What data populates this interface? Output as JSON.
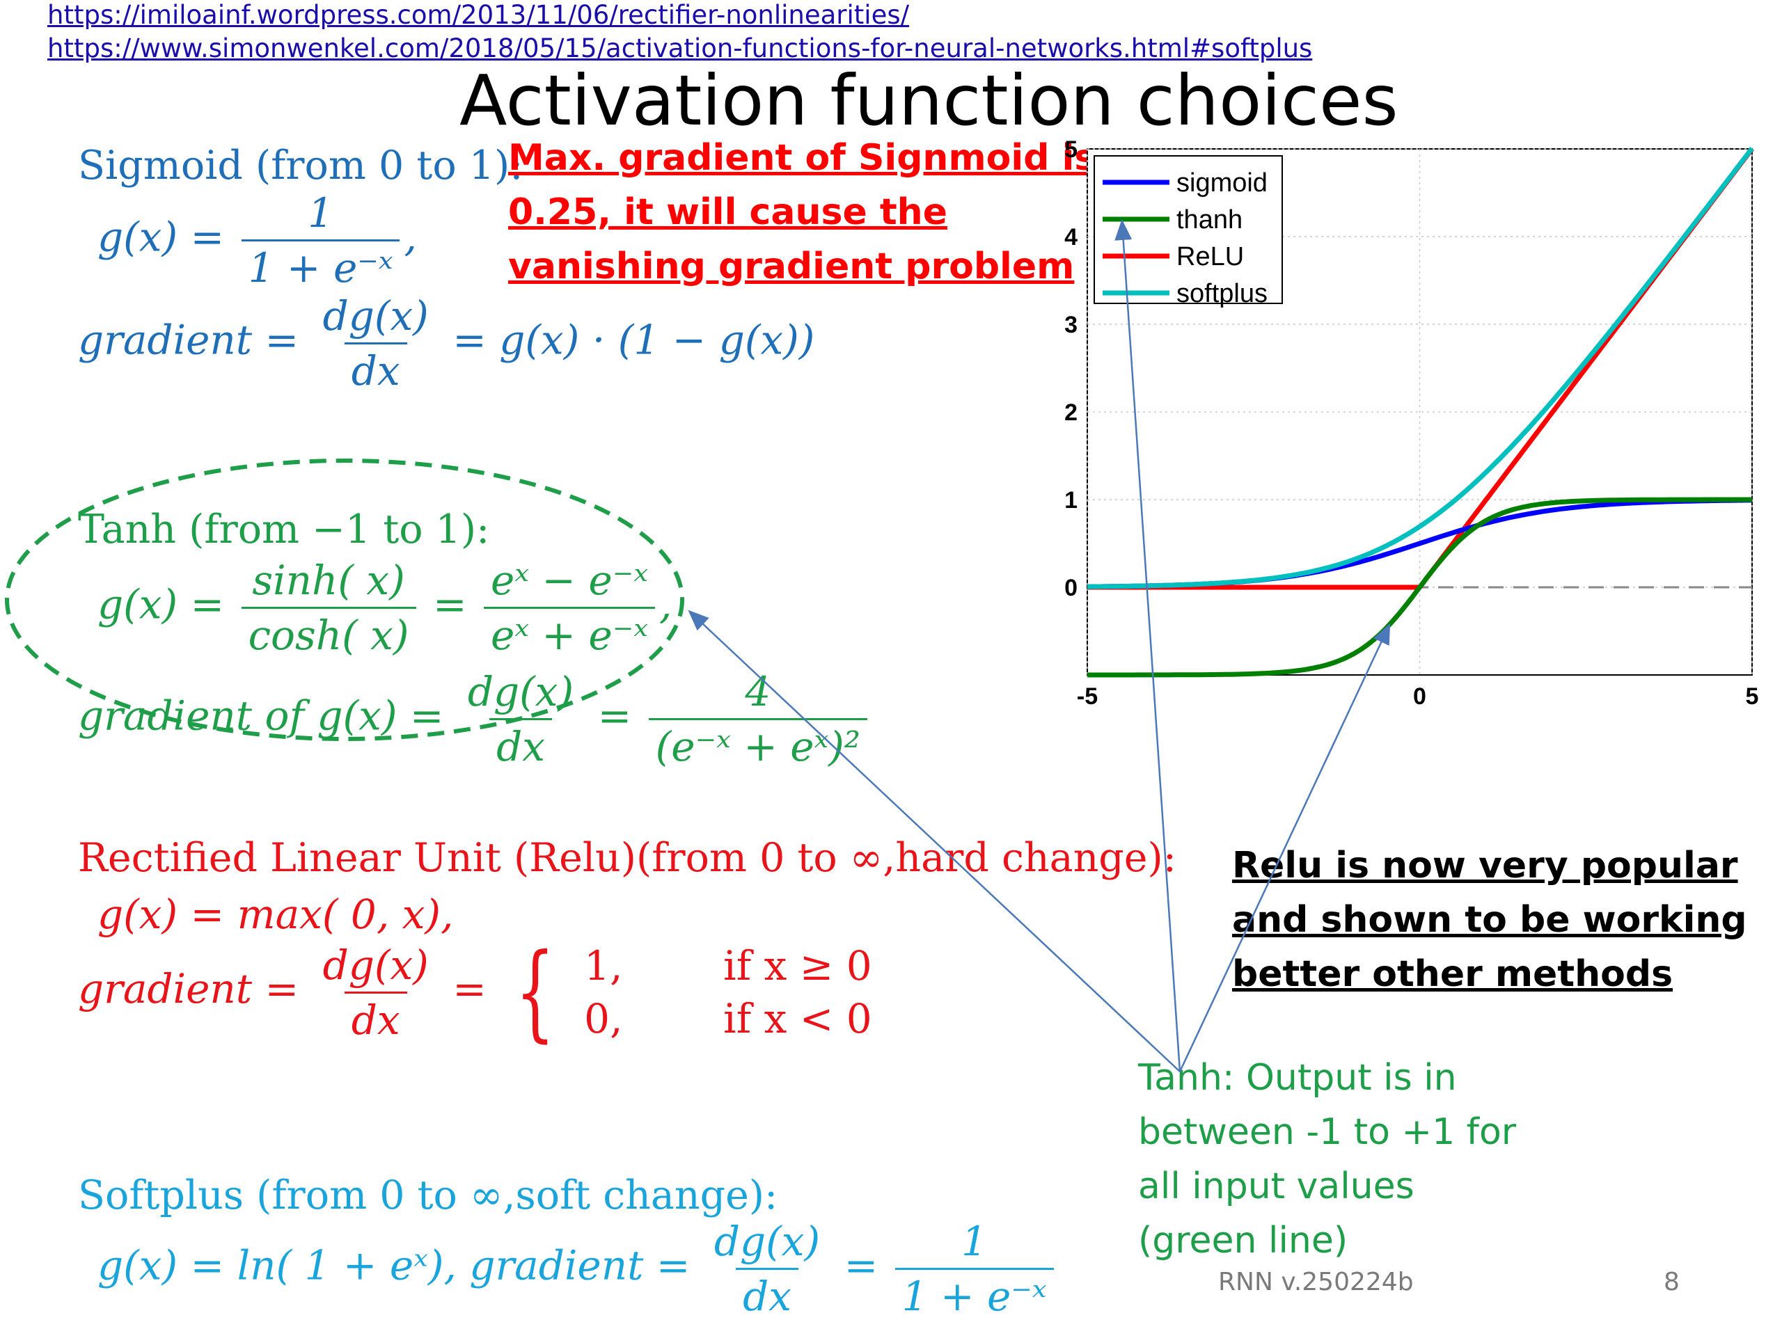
{
  "links": [
    "https://imiloainf.wordpress.com/2013/11/06/rectifier-nonlinearities/",
    "https://www.simonwenkel.com/2018/05/15/activation-functions-for-neural-networks.html#softplus"
  ],
  "title": "Activation function choices",
  "sigmoid": {
    "heading": "Sigmoid (from 0 to 1):",
    "g_lhs": "g(x) =",
    "g_num": "1",
    "g_den": "1 + e⁻ˣ",
    "g_tail": ",",
    "grad_lhs": "gradient =",
    "grad_num": "dg(x)",
    "grad_den": "dx",
    "grad_rhs": "= g(x) · (1 − g(x))"
  },
  "sigmoid_warning": [
    "Max. gradient of Signmoid is",
    "0.25, it will cause the",
    "vanishing gradient  problem"
  ],
  "tanh": {
    "heading": "Tanh (from −1 to 1):",
    "g_lhs": "g(x) =",
    "f1_num": "sinh( x)",
    "f1_den": "cosh( x)",
    "eq": "=",
    "f2_num": "eˣ − e⁻ˣ",
    "f2_den": "eˣ + e⁻ˣ",
    "tail": ",",
    "grad_lhs": "gradient of g(x) =",
    "grad_num": "dg(x)",
    "grad_den": "dx",
    "grad_eq": "=",
    "grad_num2": "4",
    "grad_den2": "(e⁻ˣ + eˣ)²"
  },
  "relu": {
    "heading": "Rectified Linear Unit (Relu)(from 0 to ∞,hard change):",
    "g": "g(x) = max( 0, x),",
    "grad_lhs": "gradient =",
    "grad_num": "dg(x)",
    "grad_den": "dx",
    "grad_eq": "=",
    "brace": "{",
    "case1_val": "1,",
    "case1_cond": "if x ≥ 0",
    "case2_val": "0,",
    "case2_cond": "if x < 0"
  },
  "softplus": {
    "heading": "Softplus (from 0 to ∞,soft change):",
    "g": "g(x) = ln( 1 + eˣ), gradient =",
    "grad_num": "dg(x)",
    "grad_den": "dx",
    "eq": "=",
    "grad_num2": "1",
    "grad_den2": "1 + e⁻ˣ"
  },
  "relu_note": [
    "Relu is now very popular",
    "and shown to be working",
    "better other methods"
  ],
  "tanh_note": [
    "Tanh: Output is in",
    "between -1 to +1 for",
    "all input values",
    "(green line)"
  ],
  "footer": {
    "version": "RNN v.250224b",
    "page": "8"
  },
  "colors": {
    "sigmoid": "#0000ff",
    "tanh": "#008000",
    "relu": "#ff0000",
    "softplus": "#00bfbf",
    "arrow": "#4a78b8",
    "ellipse": "#1e9e49"
  },
  "chart_data": {
    "type": "line",
    "xlim": [
      -5,
      5
    ],
    "ylim": [
      -1,
      5
    ],
    "x_ticks": [
      "-5",
      "0",
      "5"
    ],
    "y_ticks": [
      "0",
      "1",
      "2",
      "3",
      "4",
      "5"
    ],
    "grid": true,
    "legend_position": "top-left",
    "series": [
      {
        "name": "sigmoid",
        "color": "#0000ff",
        "fn": "sigmoid"
      },
      {
        "name": "thanh",
        "color": "#008000",
        "fn": "tanh"
      },
      {
        "name": "ReLU",
        "color": "#ff0000",
        "fn": "relu"
      },
      {
        "name": "softplus",
        "color": "#00bfbf",
        "fn": "softplus"
      }
    ],
    "x": [
      -5,
      -4,
      -3,
      -2,
      -1,
      0,
      1,
      2,
      3,
      4,
      5
    ]
  }
}
